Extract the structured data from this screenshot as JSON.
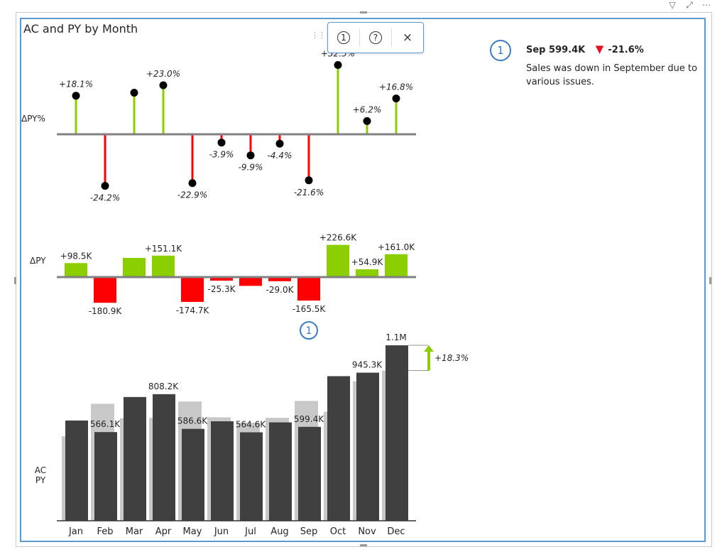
{
  "title": "AC and PY by Month",
  "toolbar": {
    "filter_icon": "filter-icon",
    "focus_icon": "focus-mode-icon",
    "more_icon": "more-options-icon"
  },
  "popup": {
    "comment_button_label": "1",
    "help_button_label": "?",
    "close_label": "×"
  },
  "comment": {
    "number": "1",
    "month": "Sep",
    "value": "599.4K",
    "delta": "-21.6%",
    "text": "Sales was down in September due to various issues."
  },
  "colors": {
    "ac": "#404040",
    "py": "#c8c8c8",
    "positive": "#8ccf00",
    "negative": "#ff0000",
    "axis": "#808080",
    "accent": "#3a7bc8"
  },
  "chart_data": [
    {
      "type": "lollipop",
      "label": "ΔPY%",
      "categories": [
        "Jan",
        "Feb",
        "Mar",
        "Apr",
        "May",
        "Jun",
        "Jul",
        "Aug",
        "Sep",
        "Oct",
        "Nov",
        "Dec"
      ],
      "values": [
        18.1,
        -24.2,
        19.5,
        23.0,
        -22.9,
        -3.9,
        -9.9,
        -4.4,
        -21.6,
        32.5,
        6.2,
        16.8
      ],
      "data_labels": [
        "+18.1%",
        "-24.2%",
        "",
        "+23.0%",
        "-22.9%",
        "-3.9%",
        "-9.9%",
        "-4.4%",
        "-21.6%",
        "+32.5%",
        "+6.2%",
        "+16.8%"
      ]
    },
    {
      "type": "bar",
      "label": "ΔPY",
      "categories": [
        "Jan",
        "Feb",
        "Mar",
        "Apr",
        "May",
        "Jun",
        "Jul",
        "Aug",
        "Sep",
        "Oct",
        "Nov",
        "Dec"
      ],
      "values": [
        98.5,
        -180.9,
        135.0,
        151.1,
        -174.7,
        -25.3,
        -62.0,
        -29.0,
        -165.5,
        226.6,
        54.9,
        161.0
      ],
      "data_labels": [
        "+98.5K",
        "-180.9K",
        "",
        "+151.1K",
        "-174.7K",
        "-25.3K",
        "",
        "-29.0K",
        "-165.5K",
        "+226.6K",
        "+54.9K",
        "+161.0K"
      ],
      "marker": {
        "category": "Sep",
        "label": "1"
      }
    },
    {
      "type": "bar",
      "label_lines": [
        "AC",
        "PY"
      ],
      "categories": [
        "Jan",
        "Feb",
        "Mar",
        "Apr",
        "May",
        "Jun",
        "Jul",
        "Aug",
        "Sep",
        "Oct",
        "Nov",
        "Dec"
      ],
      "series": [
        {
          "name": "AC",
          "values": [
            640,
            566.1,
            790,
            808.2,
            586.6,
            635,
            564.6,
            628,
            599.4,
            923,
            945.3,
            1120
          ]
        },
        {
          "name": "PY",
          "values": [
            540,
            747,
            655,
            657,
            761.3,
            660.3,
            626.6,
            657,
            764.9,
            696.4,
            890.4,
            959
          ]
        }
      ],
      "data_labels": [
        "",
        "566.1K",
        "",
        "808.2K",
        "586.6K",
        "",
        "564.6K",
        "",
        "599.4K",
        "",
        "945.3K",
        "1.1M"
      ],
      "annotation": "+18.3%"
    }
  ]
}
